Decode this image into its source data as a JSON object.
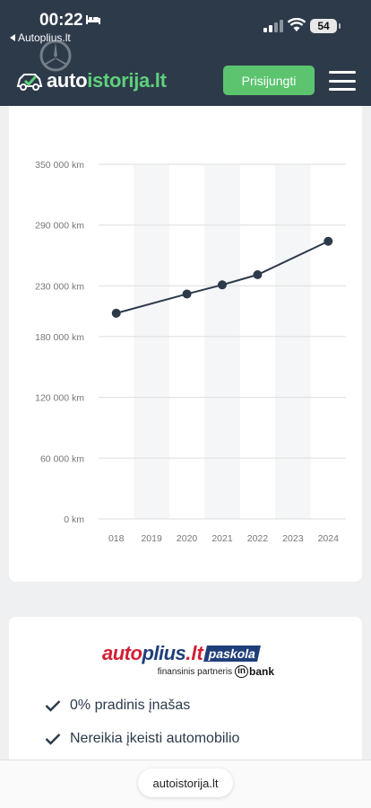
{
  "status_bar": {
    "time": "00:22",
    "back_label": "Autoplius.lt",
    "battery": "54"
  },
  "header": {
    "logo_part1": "auto",
    "logo_part2": "istorija.lt",
    "login_label": "Prisijungti"
  },
  "chart_data": {
    "type": "line",
    "title": "",
    "xlabel": "",
    "ylabel": "",
    "x": [
      "2018",
      "2019",
      "2020",
      "2021",
      "2022",
      "2023",
      "2024"
    ],
    "points": [
      {
        "x": "2018",
        "y": 203000
      },
      {
        "x": "2020",
        "y": 222000
      },
      {
        "x": "2021",
        "y": 231000
      },
      {
        "x": "2022",
        "y": 241000
      },
      {
        "x": "2024",
        "y": 274000
      }
    ],
    "ylim": [
      0,
      350000
    ],
    "yticks": [
      0,
      60000,
      120000,
      180000,
      230000,
      290000,
      350000
    ],
    "ytick_labels": [
      "0 km",
      "60 000 km",
      "120 000 km",
      "180 000 km",
      "230 000 km",
      "290 000 km",
      "350 000 km"
    ],
    "xtick_labels": [
      "018",
      "2019",
      "2020",
      "2021",
      "2022",
      "2023",
      "2024"
    ],
    "grid": true,
    "colors": {
      "line": "#2d3a4a",
      "grid": "#dddddd",
      "band": "#f5f6f7"
    }
  },
  "loan": {
    "brand_auto": "auto",
    "brand_plus": "plius",
    "brand_lt": ".lt",
    "brand_loan": "paskola",
    "partner_text": "finansinis partneris",
    "partner_in": "in",
    "partner_bank": "bank",
    "benefits": [
      "0% pradinis įnašas",
      "Nereikia įkeisti automobilio"
    ]
  },
  "bottom": {
    "url": "autoistorija.lt"
  }
}
